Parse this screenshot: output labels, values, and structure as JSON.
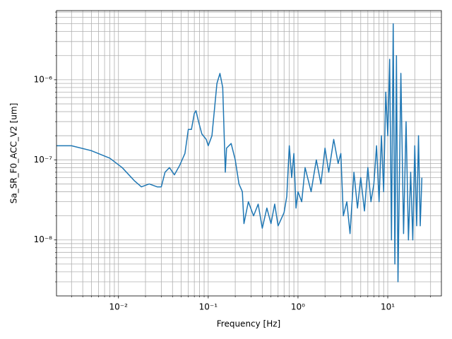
{
  "chart_data": {
    "type": "line",
    "xlabel": "Frequency [Hz]",
    "ylabel": "Sa_SR_F0_ACC_V2 [um]",
    "xscale": "log",
    "yscale": "log",
    "grid": true,
    "xlim": [
      0.00204,
      39.6
    ],
    "ylim": [
      2e-09,
      7.3e-06
    ],
    "xticks": [
      {
        "value": 0.01,
        "label": "10⁻²"
      },
      {
        "value": 0.1,
        "label": "10⁻¹"
      },
      {
        "value": 1,
        "label": "10⁰"
      },
      {
        "value": 10,
        "label": "10¹"
      }
    ],
    "yticks": [
      {
        "value": 1e-08,
        "label": "10⁻⁸"
      },
      {
        "value": 1e-07,
        "label": "10⁻⁷"
      },
      {
        "value": 1e-06,
        "label": "10⁻⁶"
      }
    ],
    "xminorticks": [
      0.003,
      0.004,
      0.005,
      0.006,
      0.007,
      0.008,
      0.009,
      0.02,
      0.03,
      0.04,
      0.05,
      0.06,
      0.07,
      0.08,
      0.09,
      0.2,
      0.3,
      0.4,
      0.5,
      0.6,
      0.7,
      0.8,
      0.9,
      2,
      3,
      4,
      5,
      6,
      7,
      8,
      9,
      20,
      30
    ],
    "yminorticks": [
      3e-09,
      4e-09,
      5e-09,
      6e-09,
      7e-09,
      8e-09,
      9e-09,
      2e-08,
      3e-08,
      4e-08,
      5e-08,
      6e-08,
      7e-08,
      8e-08,
      9e-08,
      2e-07,
      3e-07,
      4e-07,
      5e-07,
      6e-07,
      7e-07,
      8e-07,
      9e-07,
      2e-06,
      3e-06,
      4e-06,
      5e-06,
      6e-06,
      7e-06
    ],
    "x": [
      0.00204,
      0.003,
      0.005,
      0.008,
      0.011,
      0.015,
      0.018,
      0.022,
      0.027,
      0.03,
      0.033,
      0.037,
      0.042,
      0.048,
      0.055,
      0.06,
      0.065,
      0.07,
      0.073,
      0.078,
      0.085,
      0.095,
      0.1,
      0.11,
      0.125,
      0.135,
      0.145,
      0.155,
      0.16,
      0.18,
      0.2,
      0.22,
      0.24,
      0.25,
      0.28,
      0.32,
      0.36,
      0.4,
      0.45,
      0.5,
      0.55,
      0.6,
      0.7,
      0.75,
      0.8,
      0.85,
      0.9,
      0.95,
      1.0,
      1.1,
      1.2,
      1.4,
      1.6,
      1.8,
      2.0,
      2.2,
      2.5,
      2.8,
      3.0,
      3.2,
      3.5,
      3.8,
      4.2,
      4.6,
      5.0,
      5.5,
      6.0,
      6.5,
      7.0,
      7.5,
      8.0,
      8.5,
      9.0,
      9.5,
      10,
      10.5,
      11,
      11.5,
      12,
      12.5,
      13,
      14,
      15,
      16,
      17,
      18,
      19,
      20,
      21,
      22,
      23,
      24
    ],
    "series": [
      {
        "color": "#1f77b4",
        "values": [
          1.5e-07,
          1.5e-07,
          1.3e-07,
          1.05e-07,
          8e-08,
          5.5e-08,
          4.6e-08,
          5e-08,
          4.6e-08,
          4.6e-08,
          7e-08,
          8e-08,
          6.5e-08,
          8.5e-08,
          1.2e-07,
          2.4e-07,
          2.4e-07,
          3.8e-07,
          4.1e-07,
          3e-07,
          2.1e-07,
          1.8e-07,
          1.5e-07,
          2e-07,
          9e-07,
          1.2e-06,
          8e-07,
          7e-08,
          1.4e-07,
          1.6e-07,
          1e-07,
          5e-08,
          4e-08,
          1.6e-08,
          3e-08,
          2e-08,
          2.8e-08,
          1.4e-08,
          2.5e-08,
          1.6e-08,
          2.8e-08,
          1.5e-08,
          2.2e-08,
          3.5e-08,
          1.5e-07,
          6e-08,
          1.2e-07,
          2.5e-08,
          4e-08,
          3e-08,
          8e-08,
          4e-08,
          1e-07,
          5e-08,
          1.4e-07,
          7e-08,
          1.8e-07,
          9e-08,
          1.2e-07,
          2e-08,
          3e-08,
          1.2e-08,
          7e-08,
          2.5e-08,
          6e-08,
          2.3e-08,
          8e-08,
          3e-08,
          5e-08,
          1.5e-07,
          3e-08,
          2e-07,
          4e-08,
          7e-07,
          2e-07,
          1.8e-06,
          1e-08,
          5e-06,
          5e-09,
          2e-06,
          3e-09,
          1.2e-06,
          1.2e-08,
          3e-07,
          1e-08,
          7e-08,
          1e-08,
          1.5e-07,
          1.5e-08,
          2e-07,
          1.5e-08,
          6e-08
        ]
      }
    ]
  }
}
